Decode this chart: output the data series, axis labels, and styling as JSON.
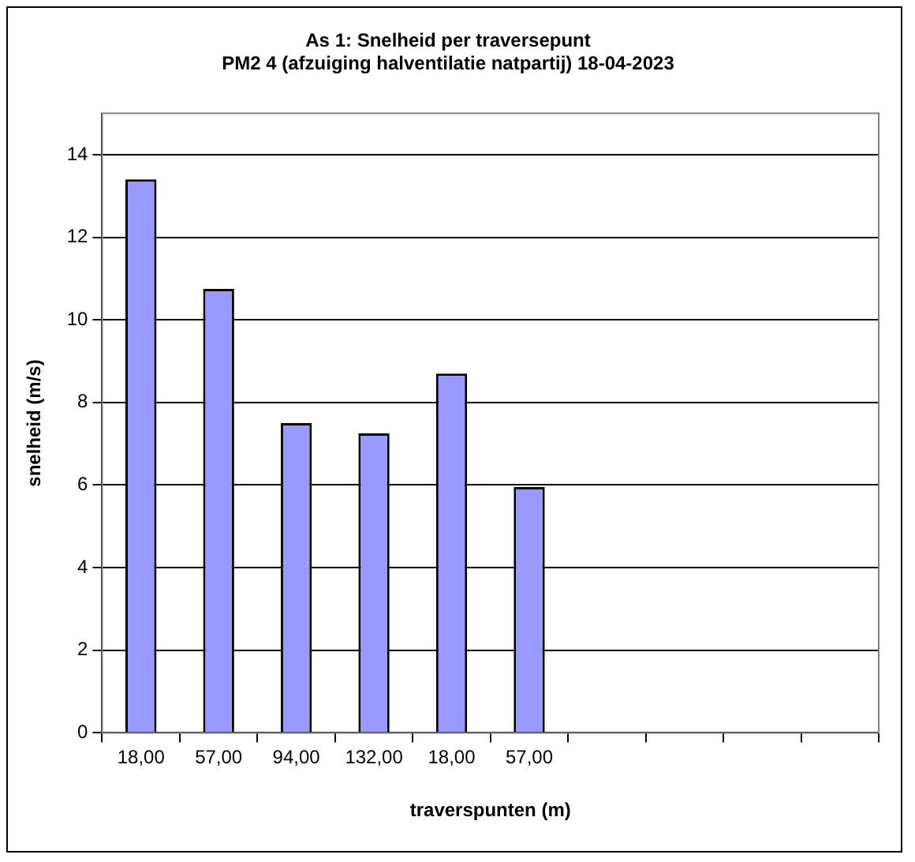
{
  "chart_data": {
    "type": "bar",
    "title": "As 1: Snelheid per traversepunt",
    "subtitle": "PM2 4 (afzuiging halventilatie natpartij) 18-04-2023",
    "xlabel": "traverspunten (m)",
    "ylabel": "snelheid (m/s)",
    "categories": [
      "18,00",
      "57,00",
      "94,00",
      "132,00",
      "18,00",
      "57,00",
      null,
      null,
      null,
      null
    ],
    "values": [
      13.4,
      10.75,
      7.5,
      7.25,
      8.7,
      5.95,
      null,
      null,
      null,
      null
    ],
    "color": "#9999ff",
    "ylim": [
      0,
      15
    ],
    "yticks": [
      0,
      2,
      4,
      6,
      8,
      10,
      12,
      14
    ],
    "grid": "y",
    "legend": false
  }
}
